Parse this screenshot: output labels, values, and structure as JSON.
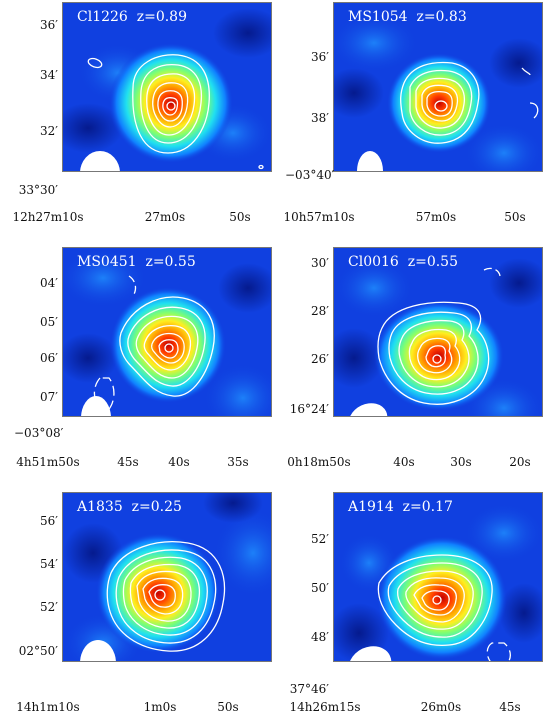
{
  "panels": [
    {
      "title": "Cl1226  z=0.89",
      "y_ticks": [
        "36′",
        "34′",
        "32′",
        "33°30′"
      ],
      "x_ticks": [
        "12h27m10s",
        "27m0s",
        "50s"
      ]
    },
    {
      "title": "MS1054  z=0.83",
      "y_ticks": [
        "36′",
        "38′",
        "−03°40′"
      ],
      "x_ticks": [
        "10h57m10s",
        "57m0s",
        "50s"
      ]
    },
    {
      "title": "MS0451  z=0.55",
      "y_ticks": [
        "04′",
        "05′",
        "06′",
        "07′",
        "−03°08′"
      ],
      "x_ticks": [
        "4h51m50s",
        "45s",
        "40s",
        "35s"
      ]
    },
    {
      "title": "Cl0016  z=0.55",
      "y_ticks": [
        "30′",
        "28′",
        "26′",
        "16°24′"
      ],
      "x_ticks": [
        "0h18m50s",
        "40s",
        "30s",
        "20s"
      ]
    },
    {
      "title": "A1835  z=0.25",
      "y_ticks": [
        "56′",
        "54′",
        "52′",
        "02°50′"
      ],
      "x_ticks": [
        "14h1m10s",
        "1m0s",
        "50s"
      ]
    },
    {
      "title": "A1914  z=0.17",
      "y_ticks": [
        "52′",
        "50′",
        "48′",
        "37°46′"
      ],
      "x_ticks": [
        "14h26m15s",
        "26m0s",
        "45s"
      ]
    }
  ]
}
